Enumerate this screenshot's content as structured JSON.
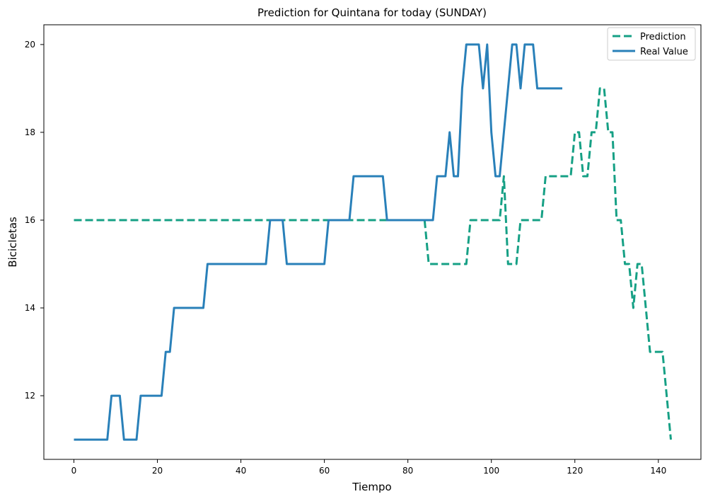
{
  "chart_data": {
    "type": "line",
    "title": "Prediction for Quintana for today (SUNDAY)",
    "xlabel": "Tiempo",
    "ylabel": "Bicicletas",
    "xlim": [
      -7.2,
      150.2
    ],
    "ylim": [
      10.55,
      20.45
    ],
    "xticks": [
      0,
      20,
      40,
      60,
      80,
      100,
      120,
      140
    ],
    "yticks": [
      12,
      14,
      16,
      18,
      20
    ],
    "grid": false,
    "legend_position": "top-right",
    "series": [
      {
        "name": "Prediction",
        "color": "#16a085",
        "dashed": true,
        "points": [
          [
            0,
            16
          ],
          [
            84,
            16
          ],
          [
            85,
            15
          ],
          [
            94,
            15
          ],
          [
            95,
            16
          ],
          [
            102,
            16
          ],
          [
            103,
            17
          ],
          [
            104,
            15
          ],
          [
            106,
            15
          ],
          [
            107,
            16
          ],
          [
            112,
            16
          ],
          [
            113,
            17
          ],
          [
            119,
            17
          ],
          [
            120,
            18
          ],
          [
            121,
            18
          ],
          [
            122,
            17
          ],
          [
            123,
            17
          ],
          [
            124,
            18
          ],
          [
            125,
            18
          ],
          [
            126,
            19
          ],
          [
            127,
            19
          ],
          [
            128,
            18
          ],
          [
            129,
            18
          ],
          [
            130,
            16
          ],
          [
            131,
            16
          ],
          [
            132,
            15
          ],
          [
            133,
            15
          ],
          [
            134,
            14
          ],
          [
            135,
            15
          ],
          [
            136,
            15
          ],
          [
            138,
            13
          ],
          [
            141,
            13
          ],
          [
            142,
            12
          ],
          [
            143,
            11
          ]
        ]
      },
      {
        "name": "Real Value",
        "color": "#2980b9",
        "dashed": false,
        "points": [
          [
            0,
            11
          ],
          [
            8,
            11
          ],
          [
            9,
            12
          ],
          [
            11,
            12
          ],
          [
            12,
            11
          ],
          [
            15,
            11
          ],
          [
            16,
            12
          ],
          [
            21,
            12
          ],
          [
            22,
            13
          ],
          [
            23,
            13
          ],
          [
            24,
            14
          ],
          [
            31,
            14
          ],
          [
            32,
            15
          ],
          [
            46,
            15
          ],
          [
            47,
            16
          ],
          [
            50,
            16
          ],
          [
            51,
            15
          ],
          [
            60,
            15
          ],
          [
            61,
            16
          ],
          [
            66,
            16
          ],
          [
            67,
            17
          ],
          [
            74,
            17
          ],
          [
            75,
            16
          ],
          [
            86,
            16
          ],
          [
            87,
            17
          ],
          [
            89,
            17
          ],
          [
            90,
            18
          ],
          [
            91,
            17
          ],
          [
            92,
            17
          ],
          [
            93,
            19
          ],
          [
            94,
            20
          ],
          [
            97,
            20
          ],
          [
            98,
            19
          ],
          [
            99,
            20
          ],
          [
            100,
            18
          ],
          [
            101,
            17
          ],
          [
            102,
            17
          ],
          [
            103,
            18
          ],
          [
            104,
            19
          ],
          [
            105,
            20
          ],
          [
            106,
            20
          ],
          [
            107,
            19
          ],
          [
            108,
            20
          ],
          [
            110,
            20
          ],
          [
            111,
            19
          ],
          [
            117,
            19
          ]
        ]
      }
    ]
  }
}
